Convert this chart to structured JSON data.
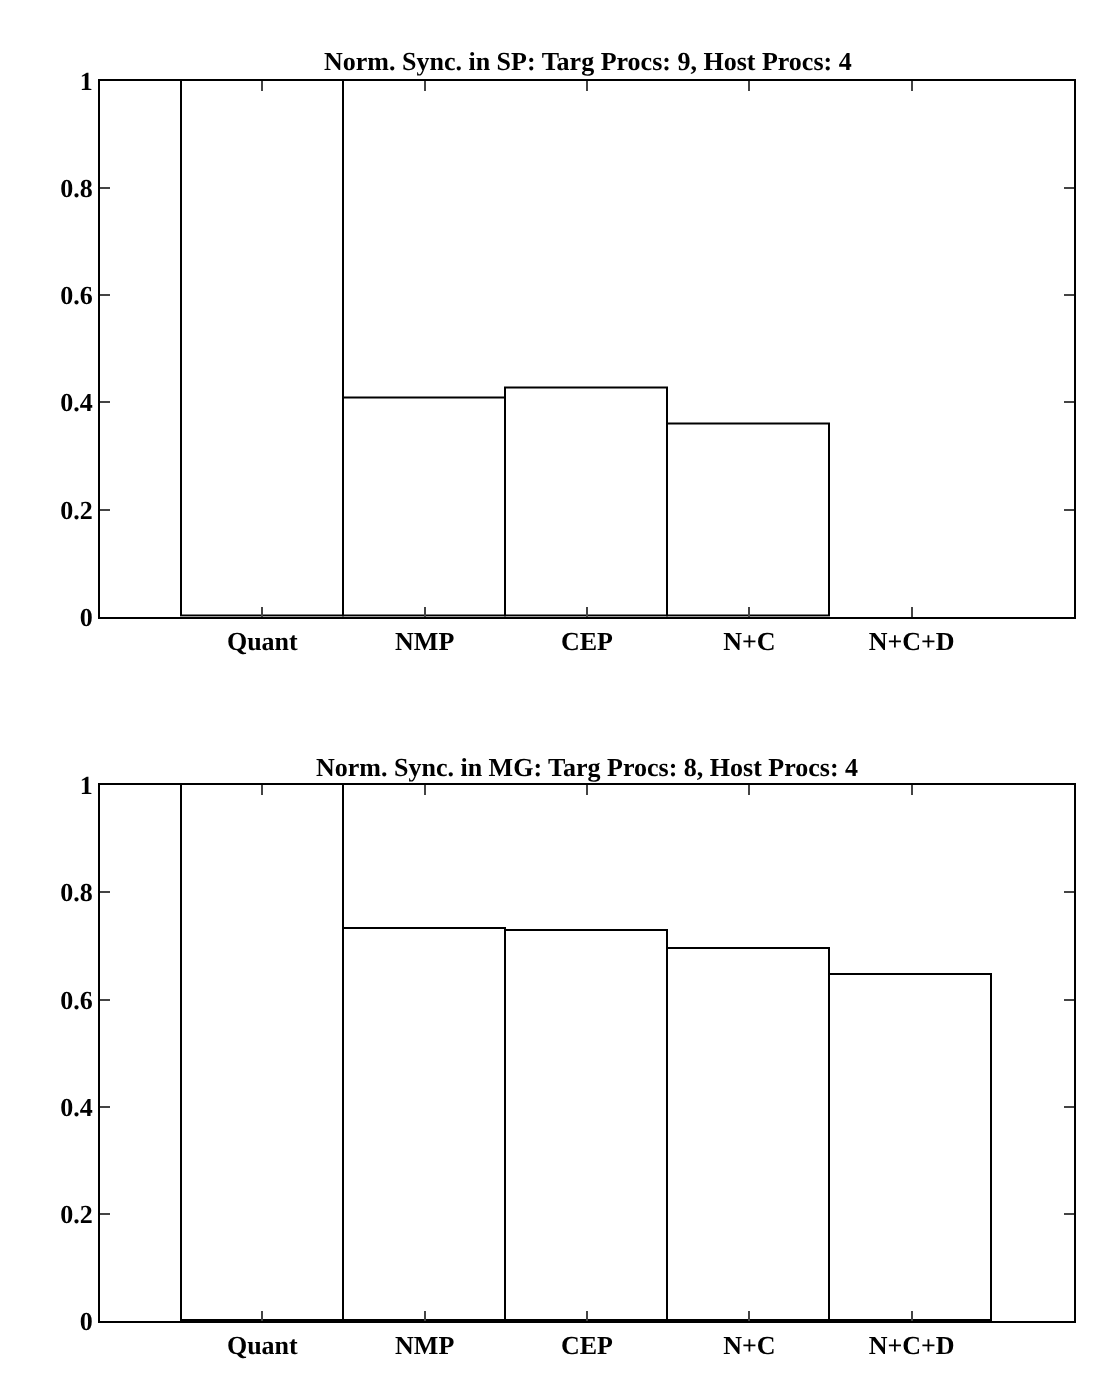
{
  "chart_data": [
    {
      "type": "bar",
      "title": "Norm. Sync. in SP: Targ Procs: 9, Host Procs: 4",
      "categories": [
        "Quant",
        "NMP",
        "CEP",
        "N+C",
        "N+C+D"
      ],
      "values": [
        1,
        0.406,
        0.424,
        0.358,
        null
      ],
      "color": "#ffffff",
      "ylim": [
        0,
        1
      ],
      "yticks": [
        0,
        0.2,
        0.4,
        0.6,
        0.8,
        1
      ]
    },
    {
      "type": "bar",
      "title": "Norm. Sync. in MG: Targ Procs: 8, Host Procs: 4",
      "categories": [
        "Quant",
        "NMP",
        "CEP",
        "N+C",
        "N+C+D"
      ],
      "values": [
        1,
        0.73,
        0.726,
        0.694,
        0.644
      ],
      "color": "#ffffff",
      "ylim": [
        0,
        1
      ],
      "yticks": [
        0,
        0.2,
        0.4,
        0.6,
        0.8,
        1
      ]
    }
  ]
}
